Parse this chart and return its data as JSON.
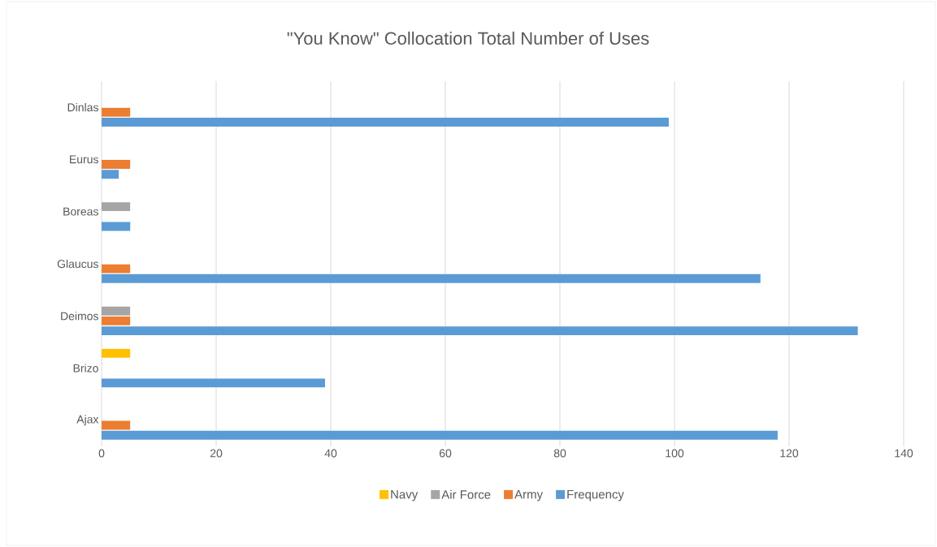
{
  "chart_data": {
    "type": "bar",
    "orientation": "horizontal",
    "title": "\"You Know\" Collocation Total Number of Uses",
    "categories": [
      "Dinlas",
      "Eurus",
      "Boreas",
      "Glaucus",
      "Deimos",
      "Brizo",
      "Ajax"
    ],
    "series": [
      {
        "name": "Navy",
        "color": "#ffc000",
        "values": [
          null,
          null,
          null,
          null,
          null,
          5,
          null
        ]
      },
      {
        "name": "Air Force",
        "color": "#a5a5a5",
        "values": [
          null,
          null,
          5,
          null,
          5,
          null,
          null
        ]
      },
      {
        "name": "Army",
        "color": "#ed7d31",
        "values": [
          5,
          5,
          null,
          5,
          5,
          null,
          5
        ]
      },
      {
        "name": "Frequency",
        "color": "#5b9bd5",
        "values": [
          99,
          3,
          5,
          115,
          132,
          39,
          118
        ]
      }
    ],
    "xlim": [
      0,
      140
    ],
    "xticks": [
      0,
      20,
      40,
      60,
      80,
      100,
      120,
      140
    ],
    "grid": "x",
    "legend": "bottom"
  }
}
